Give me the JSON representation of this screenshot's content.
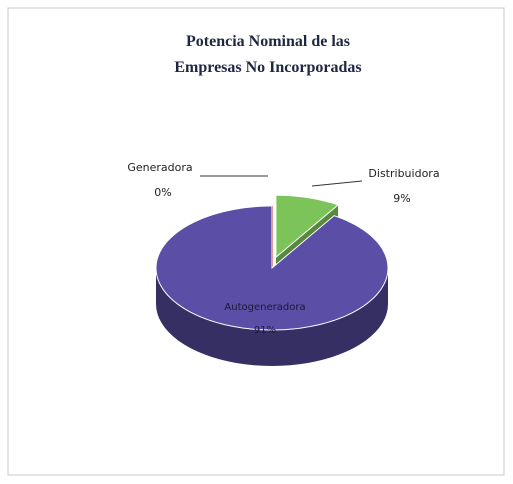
{
  "chart_data": {
    "type": "pie",
    "title": [
      "Potencia Nominal de las",
      "Empresas No Incorporadas"
    ],
    "categories": [
      "Generadora",
      "Distribuidora",
      "Autogeneradora"
    ],
    "values": [
      0,
      9,
      91
    ],
    "value_labels": [
      "0%",
      "9%",
      "91%"
    ],
    "colors": [
      "#c0392b",
      "#7cc359",
      "#5a4ea6"
    ],
    "three_d": true
  }
}
